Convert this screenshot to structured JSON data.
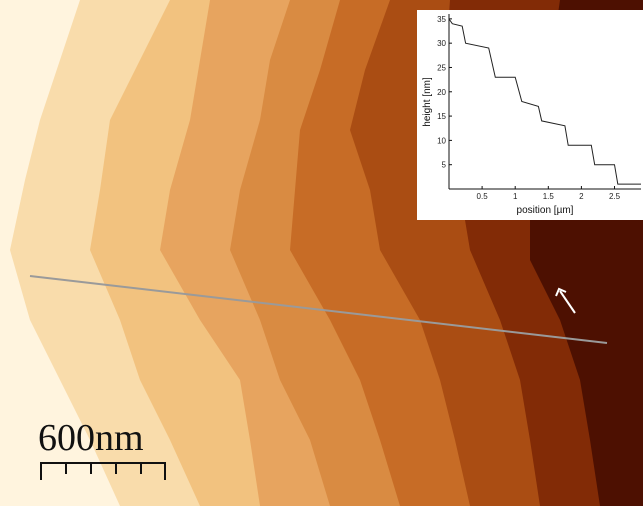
{
  "scale_bar": {
    "label": "600nm"
  },
  "chart_data": {
    "type": "line",
    "x_label": "position [µm]",
    "y_label": "height [nm]",
    "x": [
      0,
      0.05,
      0.2,
      0.25,
      0.6,
      0.7,
      1.0,
      1.1,
      1.35,
      1.4,
      1.75,
      1.8,
      2.15,
      2.2,
      2.5,
      2.55,
      2.9
    ],
    "values": [
      35,
      34,
      33.5,
      30,
      29,
      23,
      23,
      18,
      17,
      14,
      13,
      9,
      9,
      5,
      5,
      1,
      1
    ],
    "color": "#222222",
    "xlim": [
      0,
      2.9
    ],
    "ylim": [
      0,
      36
    ],
    "xticks": [
      0.5,
      1,
      1.5,
      2,
      2.5
    ],
    "yticks": [
      5,
      10,
      15,
      20,
      25,
      30,
      35
    ]
  }
}
